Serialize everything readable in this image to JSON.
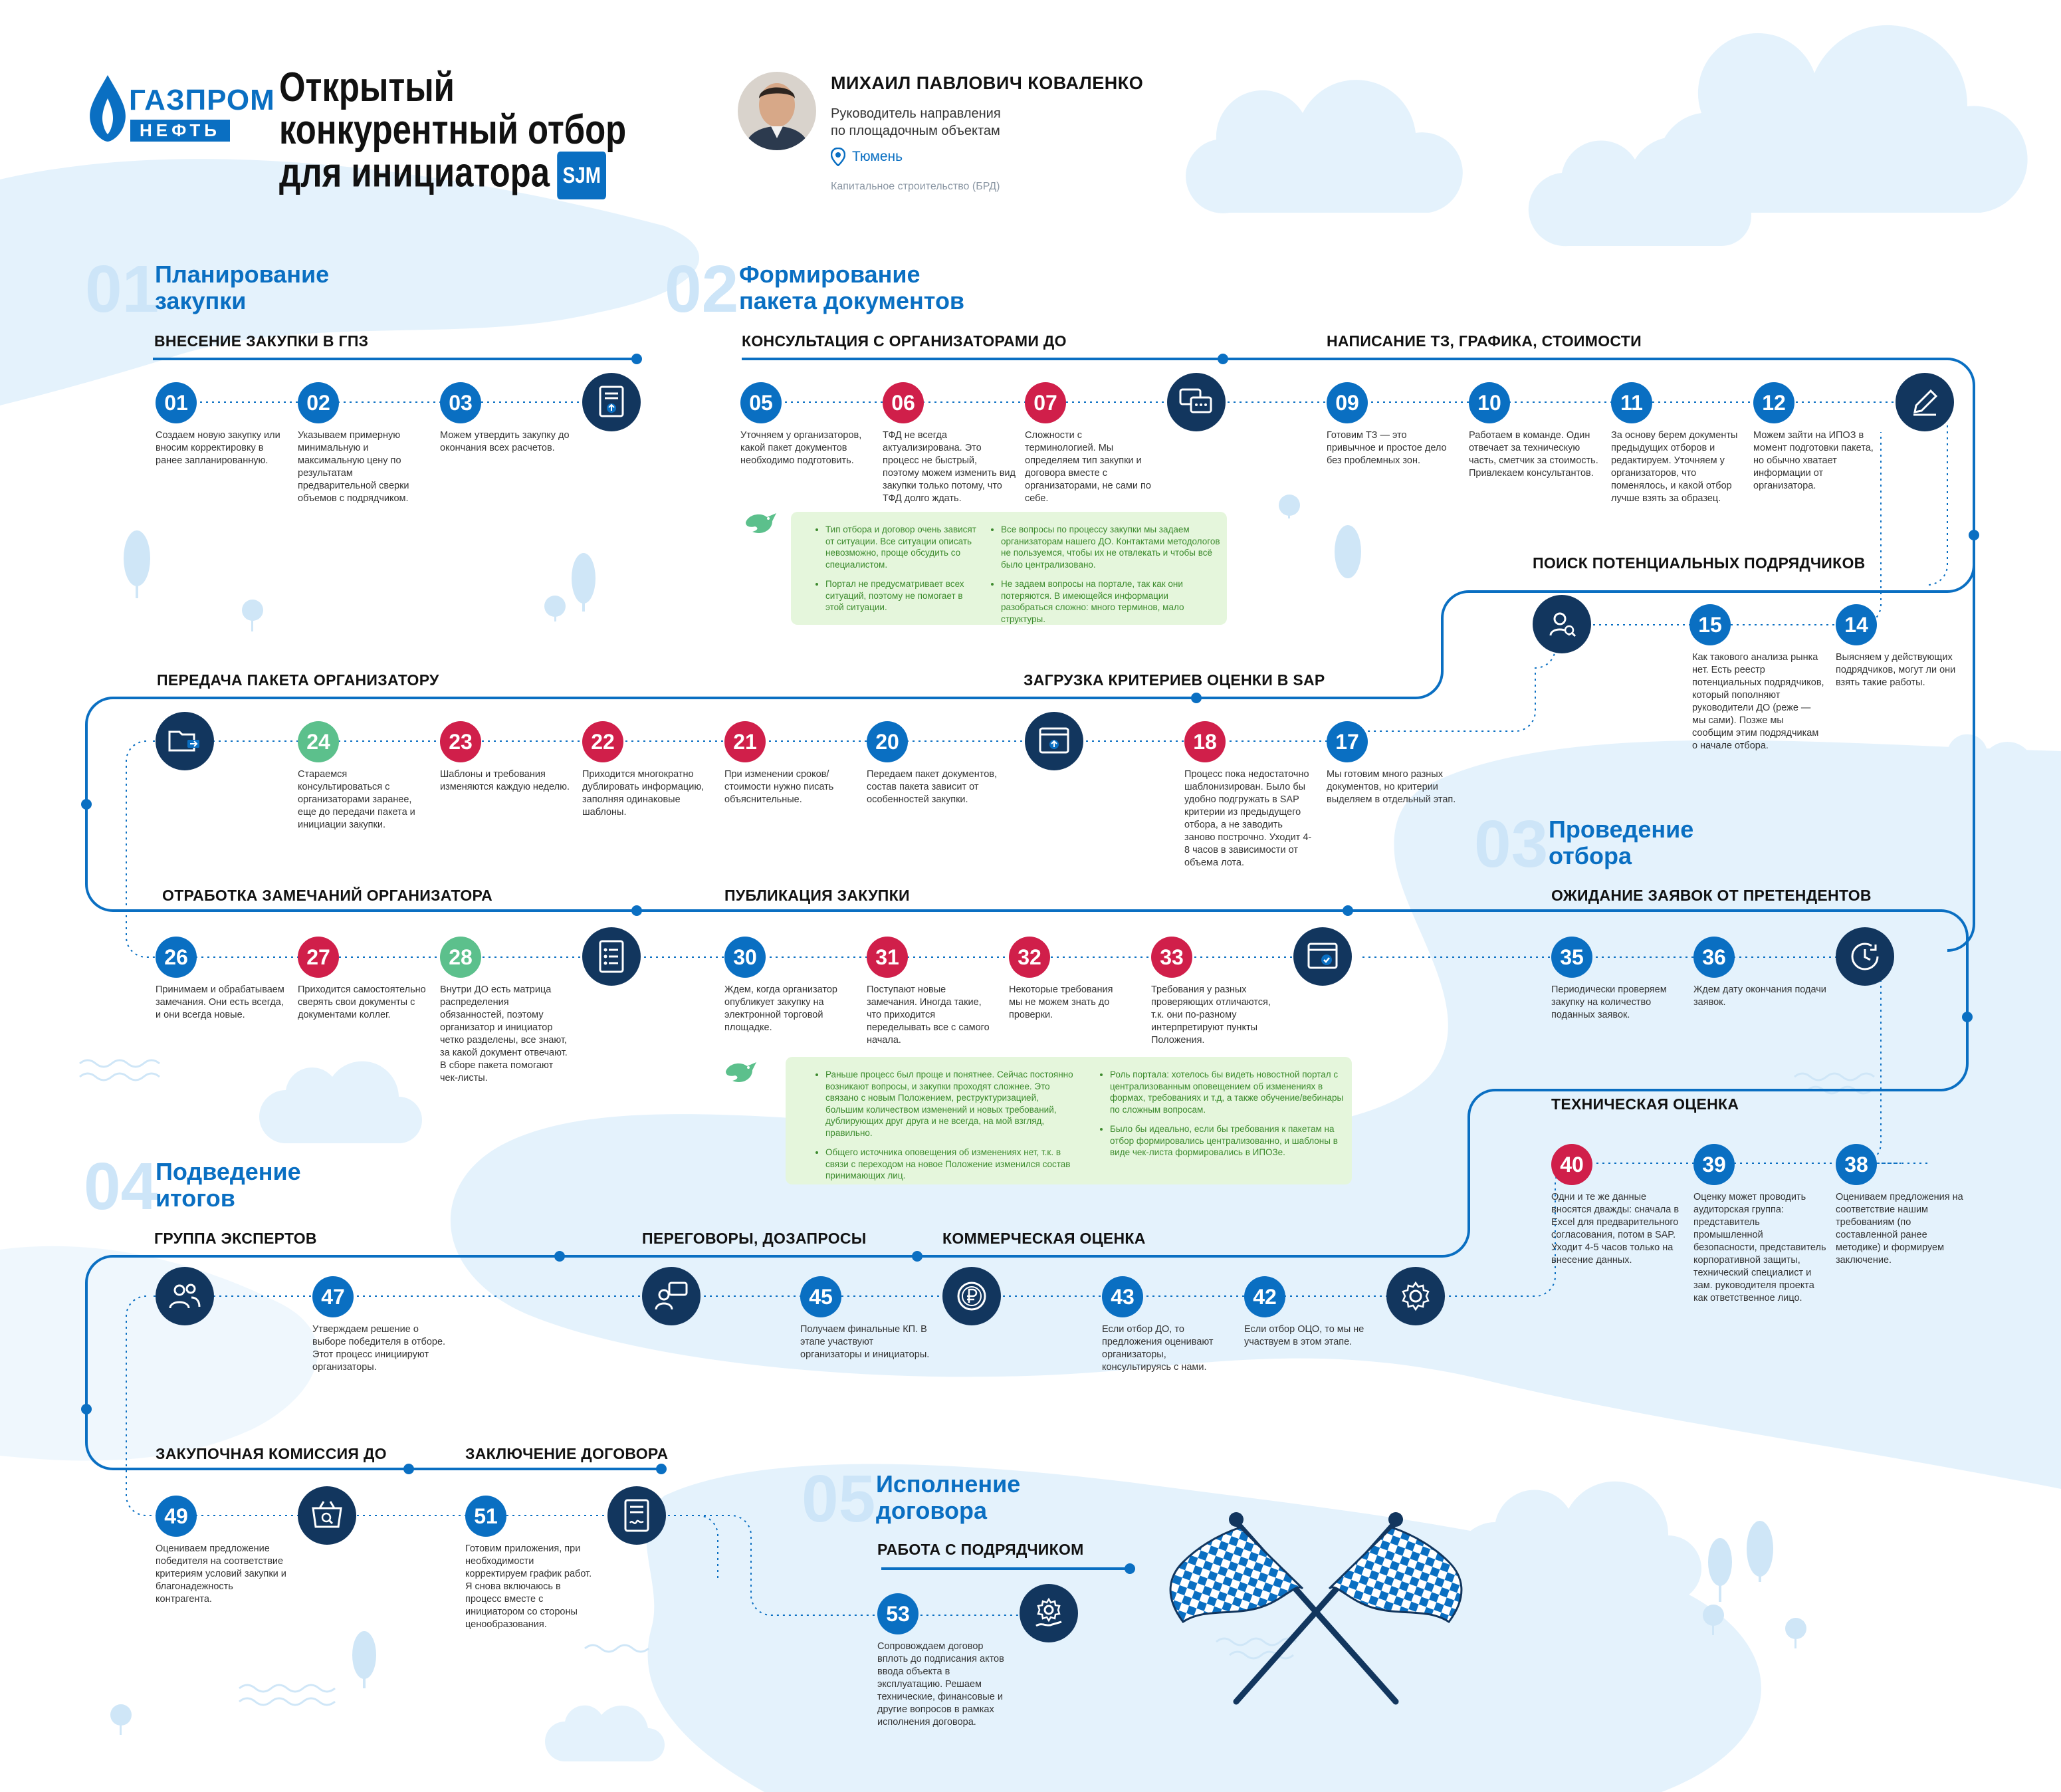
{
  "header": {
    "logo_top": "ГАЗПРОМ",
    "logo_bottom": "НЕФТЬ",
    "title_lines": [
      "Открытый",
      "конкурентный отбор",
      "для инициатора"
    ],
    "badge": "SJM",
    "person": {
      "name": "МИХАИЛ ПАВЛОВИЧ КОВАЛЕНКО",
      "role_line1": "Руководитель направления",
      "role_line2": "по площадочным объектам",
      "city": "Тюмень",
      "dept": "Капитальное строительство (БРД)"
    }
  },
  "phases": [
    {
      "num": "01",
      "title_line1": "Планирование",
      "title_line2": "закупки"
    },
    {
      "num": "02",
      "title_line1": "Формирование",
      "title_line2": "пакета документов"
    },
    {
      "num": "03",
      "title_line1": "Проведение",
      "title_line2": "отбора"
    },
    {
      "num": "04",
      "title_line1": "Подведение",
      "title_line2": "итогов"
    },
    {
      "num": "05",
      "title_line1": "Исполнение",
      "title_line2": "договора"
    }
  ],
  "sections": {
    "gpz": "ВНЕСЕНИЕ ЗАКУПКИ В ГПЗ",
    "consult": "КОНСУЛЬТАЦИЯ С ОРГАНИЗАТОРАМИ ДО",
    "tz": "НАПИСАНИЕ ТЗ, ГРАФИКА, СТОИМОСТИ",
    "search": "ПОИСК ПОТЕНЦИАЛЬНЫХ ПОДРЯДЧИКОВ",
    "transfer": "ПЕРЕДАЧА ПАКЕТА ОРГАНИЗАТОРУ",
    "sap": "ЗАГРУЗКА КРИТЕРИЕВ ОЦЕНКИ В SAP",
    "remarks": "ОТРАБОТКА ЗАМЕЧАНИЙ ОРГАНИЗАТОРА",
    "publish": "ПУБЛИКАЦИЯ ЗАКУПКИ",
    "wait": "ОЖИДАНИЕ ЗАЯВОК ОТ ПРЕТЕНДЕНТОВ",
    "tech": "ТЕХНИЧЕСКАЯ ОЦЕНКА",
    "experts": "ГРУППА ЭКСПЕРТОВ",
    "negot": "ПЕРЕГОВОРЫ, ДОЗАПРОСЫ",
    "comm": "КОММЕРЧЕСКАЯ ОЦЕНКА",
    "commission": "ЗАКУПОЧНАЯ КОМИССИЯ ДО",
    "contract": "ЗАКЛЮЧЕНИЕ ДОГОВОРА",
    "work": "РАБОТА С ПОДРЯДЧИКОМ"
  },
  "steps": {
    "s01": {
      "num": "01",
      "text": "Создаем новую закупку или вносим корректировку в ранее запланированную."
    },
    "s02": {
      "num": "02",
      "text": "Указываем примерную минимальную и максимальную цену по результатам предварительной сверки объемов с подрядчиком."
    },
    "s03": {
      "num": "03",
      "text": "Можем утвердить закупку до окончания всех расчетов."
    },
    "s05": {
      "num": "05",
      "text": "Уточняем у организаторов, какой пакет документов необходимо подготовить."
    },
    "s06": {
      "num": "06",
      "text": "ТФД не всегда актуализирована. Это процесс не быстрый, поэтому можем изменить вид закупки только потому, что ТФД долго ждать."
    },
    "s07": {
      "num": "07",
      "text": "Сложности с терминологией. Мы определяем тип закупки и договора вместе с организаторами, не сами по себе."
    },
    "s09": {
      "num": "09",
      "text": "Готовим ТЗ — это привычное и простое дело без проблемных зон."
    },
    "s10": {
      "num": "10",
      "text": "Работаем в команде. Один отвечает за техническую часть, сметчик за стоимость. Привлекаем консультантов."
    },
    "s11": {
      "num": "11",
      "text": "За основу берем документы предыдущих отборов и редактируем. Уточняем у организаторов, что поменялось, и какой отбор лучше взять за образец."
    },
    "s12": {
      "num": "12",
      "text": "Можем зайти на ИПОЗ в момент подготовки пакета, но обычно хватает информации от организатора."
    },
    "s14": {
      "num": "14",
      "text": "Выясняем у действующих подрядчиков, могут ли они взять такие работы."
    },
    "s15": {
      "num": "15",
      "text": "Как такового анализа рынка нет. Есть реестр потенциальных подрядчиков, который пополняют руководители ДО (реже — мы сами). Позже мы сообщим этим подрядчикам о начале отбора."
    },
    "s17": {
      "num": "17",
      "text": "Мы готовим много разных документов, но критерии выделяем в отдельный этап."
    },
    "s18": {
      "num": "18",
      "text": "Процесс пока недостаточно шаблонизирован. Было бы удобно подгружать в SAP критерии из предыдущего отбора, а не заводить заново построчно. Уходит 4-8 часов в зависимости от объема лота."
    },
    "s20": {
      "num": "20",
      "text": "Передаем пакет документов, состав пакета зависит от особенностей закупки."
    },
    "s21": {
      "num": "21",
      "text": "При изменении сроков/ стоимости нужно писать объяснительные."
    },
    "s22": {
      "num": "22",
      "text": "Приходится многократно дублировать информацию, заполняя одинаковые шаблоны."
    },
    "s23": {
      "num": "23",
      "text": "Шаблоны и требования изменяются каждую неделю."
    },
    "s24": {
      "num": "24",
      "text": "Стараемся консультироваться с организаторами заранее, еще до передачи пакета и инициации закупки."
    },
    "s26": {
      "num": "26",
      "text": "Принимаем и обрабатываем замечания. Они есть всегда, и они всегда новые."
    },
    "s27": {
      "num": "27",
      "text": "Приходится самостоятельно сверять свои документы с документами коллег."
    },
    "s28": {
      "num": "28",
      "text": "Внутри ДО есть матрица распределения обязанностей, поэтому организатор и инициатор четко разделены, все знают, за какой документ отвечают. В сборе пакета помогают чек-листы."
    },
    "s30": {
      "num": "30",
      "text": "Ждем, когда организатор опубликует закупку на электронной торговой площадке."
    },
    "s31": {
      "num": "31",
      "text": "Поступают новые замечания. Иногда такие, что приходится переделывать все с самого начала."
    },
    "s32": {
      "num": "32",
      "text": "Некоторые требования мы не можем знать до проверки."
    },
    "s33": {
      "num": "33",
      "text": "Требования у разных проверяющих отличаются, т.к. они по-разному интерпретируют пункты Положения."
    },
    "s35": {
      "num": "35",
      "text": "Периодически проверяем закупку на количество поданных заявок."
    },
    "s36": {
      "num": "36",
      "text": "Ждем дату окончания подачи заявок."
    },
    "s38": {
      "num": "38",
      "text": "Оцениваем предложения на соответствие нашим требованиям (по составленной ранее методике) и формируем заключение."
    },
    "s39": {
      "num": "39",
      "text": "Оценку может проводить аудиторская группа: представитель промышленной безопасности, представитель корпоративной защиты, технический специалист и зам. руководителя проекта как ответственное лицо."
    },
    "s40": {
      "num": "40",
      "text": "Одни и те же данные вносятся дважды: сначала в Excel для предварительного согласования, потом в SAP. Уходит 4-5 часов только на внесение данных."
    },
    "s42": {
      "num": "42",
      "text": "Если отбор ОЦО, то мы не участвуем в этом этапе."
    },
    "s43": {
      "num": "43",
      "text": "Если отбор ДО, то предложения оценивают организаторы, консультируясь с нами."
    },
    "s45": {
      "num": "45",
      "text": "Получаем финальные КП. В этапе участвуют организаторы и инициаторы."
    },
    "s47": {
      "num": "47",
      "text": "Утверждаем решение о выборе победителя в отборе. Этот процесс инициируют организаторы."
    },
    "s49": {
      "num": "49",
      "text": "Оцениваем предложение победителя на соответствие критериям условий закупки и благонадежность контрагента."
    },
    "s51": {
      "num": "51",
      "text": "Готовим приложения, при необходимости корректируем график работ. Я снова включаюсь в процесс вместе с инициатором со стороны ценообразования."
    },
    "s53": {
      "num": "53",
      "text": "Сопровождаем договор вплоть до подписания актов ввода объекта в эксплуатацию. Решаем технические, финансовые и другие вопросов в рамках исполнения договора."
    }
  },
  "callouts": {
    "c1_a1": "Тип отбора и договор очень зависят от ситуации. Все ситуации описать невозможно, проще обсудить со специалистом.",
    "c1_a2": "Портал не предусматривает всех ситуаций, поэтому не помогает в этой ситуации.",
    "c1_b1": "Все вопросы по процессу закупки мы задаем организаторам нашего ДО. Контактами методологов не пользуемся, чтобы их не отвлекать и чтобы всё было централизовано.",
    "c1_b2": "Не задаем вопросы на портале, так как они потеряются. В имеющейся информации разобраться сложно: много терминов, мало структуры.",
    "c2_a1": "Раньше процесс был проще и понятнее. Сейчас постоянно возникают вопросы, и закупки проходят сложнее. Это связано с новым Положением, реструктуризацией, большим количеством изменений и новых требований, дублирующих друг друга и не всегда, на мой взгляд, правильно.",
    "c2_a2": "Общего источника оповещения об изменениях нет, т.к. в связи с переходом на новое Положение изменился состав принимающих лиц.",
    "c2_b1": "Роль портала: хотелось бы видеть новостной портал с централизованным оповещением об изменениях в формах, требованиях и т.д, а также обучение/вебинары по сложным вопросам.",
    "c2_b2": "Было бы идеально, если бы требования к пакетам на отбор формировались централизованно, и шаблоны в виде чек-листа формировались в ИПОЗе."
  },
  "colors": {
    "brand_blue": "#0a6fc2",
    "navy": "#12365e",
    "red": "#d01f4a",
    "green": "#5cc08c",
    "sky": "#e4f2fc",
    "callout": "#e5f6dc"
  },
  "icons": [
    "doc-upload-icon",
    "chat-icon",
    "pen-icon",
    "user-search-icon",
    "folder-send-icon",
    "browser-upload-icon",
    "doc-list-icon",
    "browser-check-icon",
    "clock-icon",
    "gear-icon",
    "people-icon",
    "chat-user-icon",
    "ruble-icon",
    "basket-search-icon",
    "contract-icon",
    "gear-hand-icon",
    "checkered-flags-icon",
    "bird-icon"
  ]
}
